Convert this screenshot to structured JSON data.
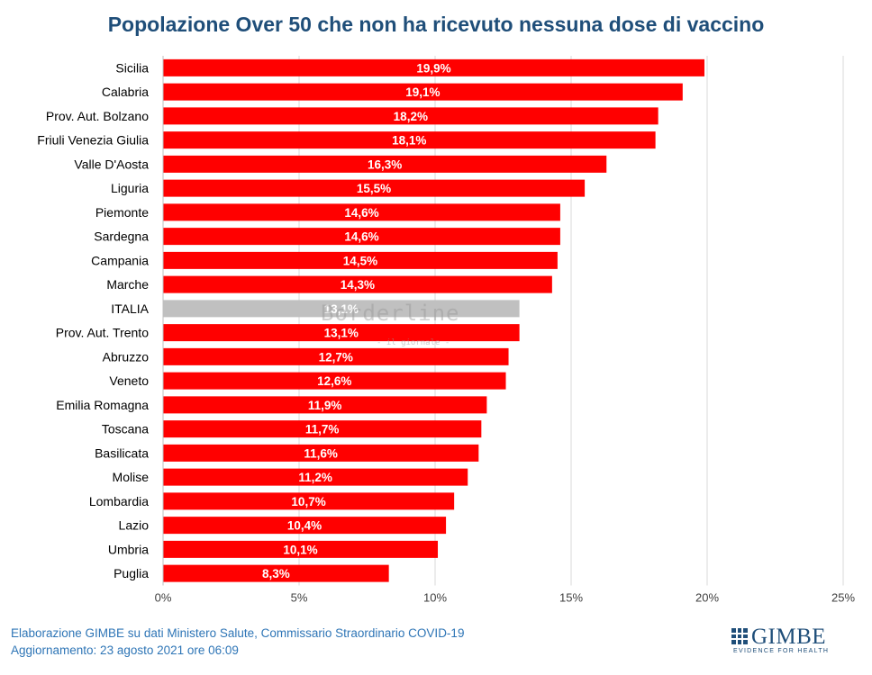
{
  "colors": {
    "bar": "#ff0000",
    "highlight_bar": "#c0c0c0",
    "title": "#1f4e79",
    "footer": "#2e75b6",
    "grid": "#d9d9d9"
  },
  "chart_data": {
    "type": "bar",
    "orientation": "horizontal",
    "title": "Popolazione Over 50 che non ha ricevuto nessuna dose di vaccino",
    "categories": [
      "Sicilia",
      "Calabria",
      "Prov. Aut. Bolzano",
      "Friuli Venezia Giulia",
      "Valle D'Aosta",
      "Liguria",
      "Piemonte",
      "Sardegna",
      "Campania",
      "Marche",
      "ITALIA",
      "Prov. Aut. Trento",
      "Abruzzo",
      "Veneto",
      "Emilia Romagna",
      "Toscana",
      "Basilicata",
      "Molise",
      "Lombardia",
      "Lazio",
      "Umbria",
      "Puglia"
    ],
    "values": [
      19.9,
      19.1,
      18.2,
      18.1,
      16.3,
      15.5,
      14.6,
      14.6,
      14.5,
      14.3,
      13.1,
      13.1,
      12.7,
      12.6,
      11.9,
      11.7,
      11.6,
      11.2,
      10.7,
      10.4,
      10.1,
      8.3
    ],
    "data_labels": [
      "19,9%",
      "19,1%",
      "18,2%",
      "18,1%",
      "16,3%",
      "15,5%",
      "14,6%",
      "14,6%",
      "14,5%",
      "14,3%",
      "13,1%",
      "13,1%",
      "12,7%",
      "12,6%",
      "11,9%",
      "11,7%",
      "11,6%",
      "11,2%",
      "10,7%",
      "10,4%",
      "10,1%",
      "8,3%"
    ],
    "highlight_category": "ITALIA",
    "xlim": [
      0,
      25
    ],
    "xticks": [
      0,
      5,
      10,
      15,
      20,
      25
    ],
    "xtick_labels": [
      "0%",
      "5%",
      "10%",
      "15%",
      "20%",
      "25%"
    ],
    "grid": true
  },
  "footer": {
    "source": "Elaborazione GIMBE su dati Ministero Salute, Commissario Straordinario COVID-19",
    "updated": "Aggiornamento: 23 agosto 2021 ore 06:09"
  },
  "logo": {
    "name": "GIMBE",
    "tagline": "EVIDENCE FOR HEALTH"
  },
  "watermark": {
    "text": "Borderline",
    "subtext": "- il giornale -"
  }
}
